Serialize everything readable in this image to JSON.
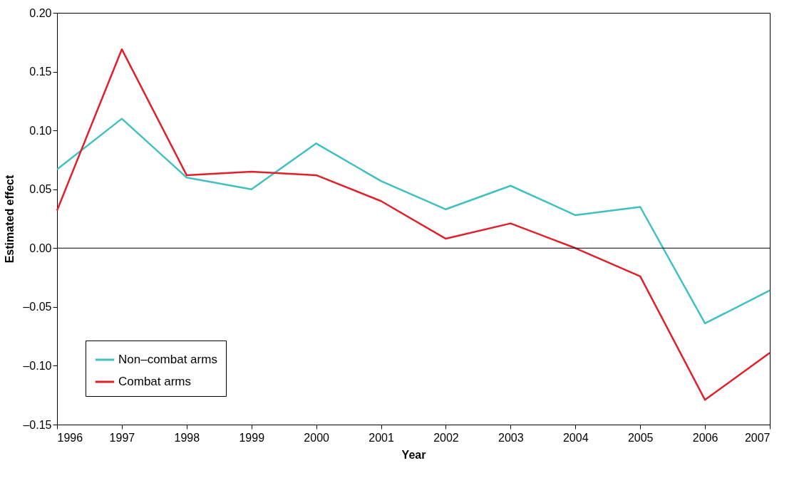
{
  "chart_data": {
    "type": "line",
    "xlabel": "Year",
    "ylabel": "Estimated effect",
    "x": [
      1996,
      1997,
      1998,
      1999,
      2000,
      2001,
      2002,
      2003,
      2004,
      2005,
      2006,
      2007
    ],
    "series": [
      {
        "name": "Non–combat arms",
        "color": "#40c0c0",
        "values": [
          0.067,
          0.11,
          0.06,
          0.05,
          0.089,
          0.057,
          0.033,
          0.053,
          0.028,
          0.035,
          -0.064,
          -0.036
        ]
      },
      {
        "name": "Combat arms",
        "color": "#e0202a",
        "values": [
          0.032,
          0.169,
          0.062,
          0.065,
          0.062,
          0.04,
          0.008,
          0.021,
          0.0,
          -0.024,
          -0.129,
          -0.089
        ]
      }
    ],
    "xlim": [
      1996,
      2007
    ],
    "xticks": [
      1996,
      1997,
      1998,
      1999,
      2000,
      2001,
      2002,
      2003,
      2004,
      2005,
      2006,
      2007
    ],
    "ylim": [
      -0.15,
      0.2
    ],
    "yticks": [
      {
        "value": -0.15,
        "label": "–0.15"
      },
      {
        "value": -0.1,
        "label": "–0.10"
      },
      {
        "value": -0.05,
        "label": "–0.05"
      },
      {
        "value": 0,
        "label": "0.00"
      },
      {
        "value": 0.05,
        "label": "0.05"
      },
      {
        "value": 0.1,
        "label": "0.10"
      },
      {
        "value": 0.15,
        "label": "0.15"
      },
      {
        "value": 0.2,
        "label": "0.20"
      }
    ],
    "ref_lines": [
      {
        "axis": "y",
        "value": 0,
        "color": "#000000"
      }
    ],
    "grid": false,
    "legend": "bottom left",
    "marker": "none",
    "line_style": "solid"
  }
}
